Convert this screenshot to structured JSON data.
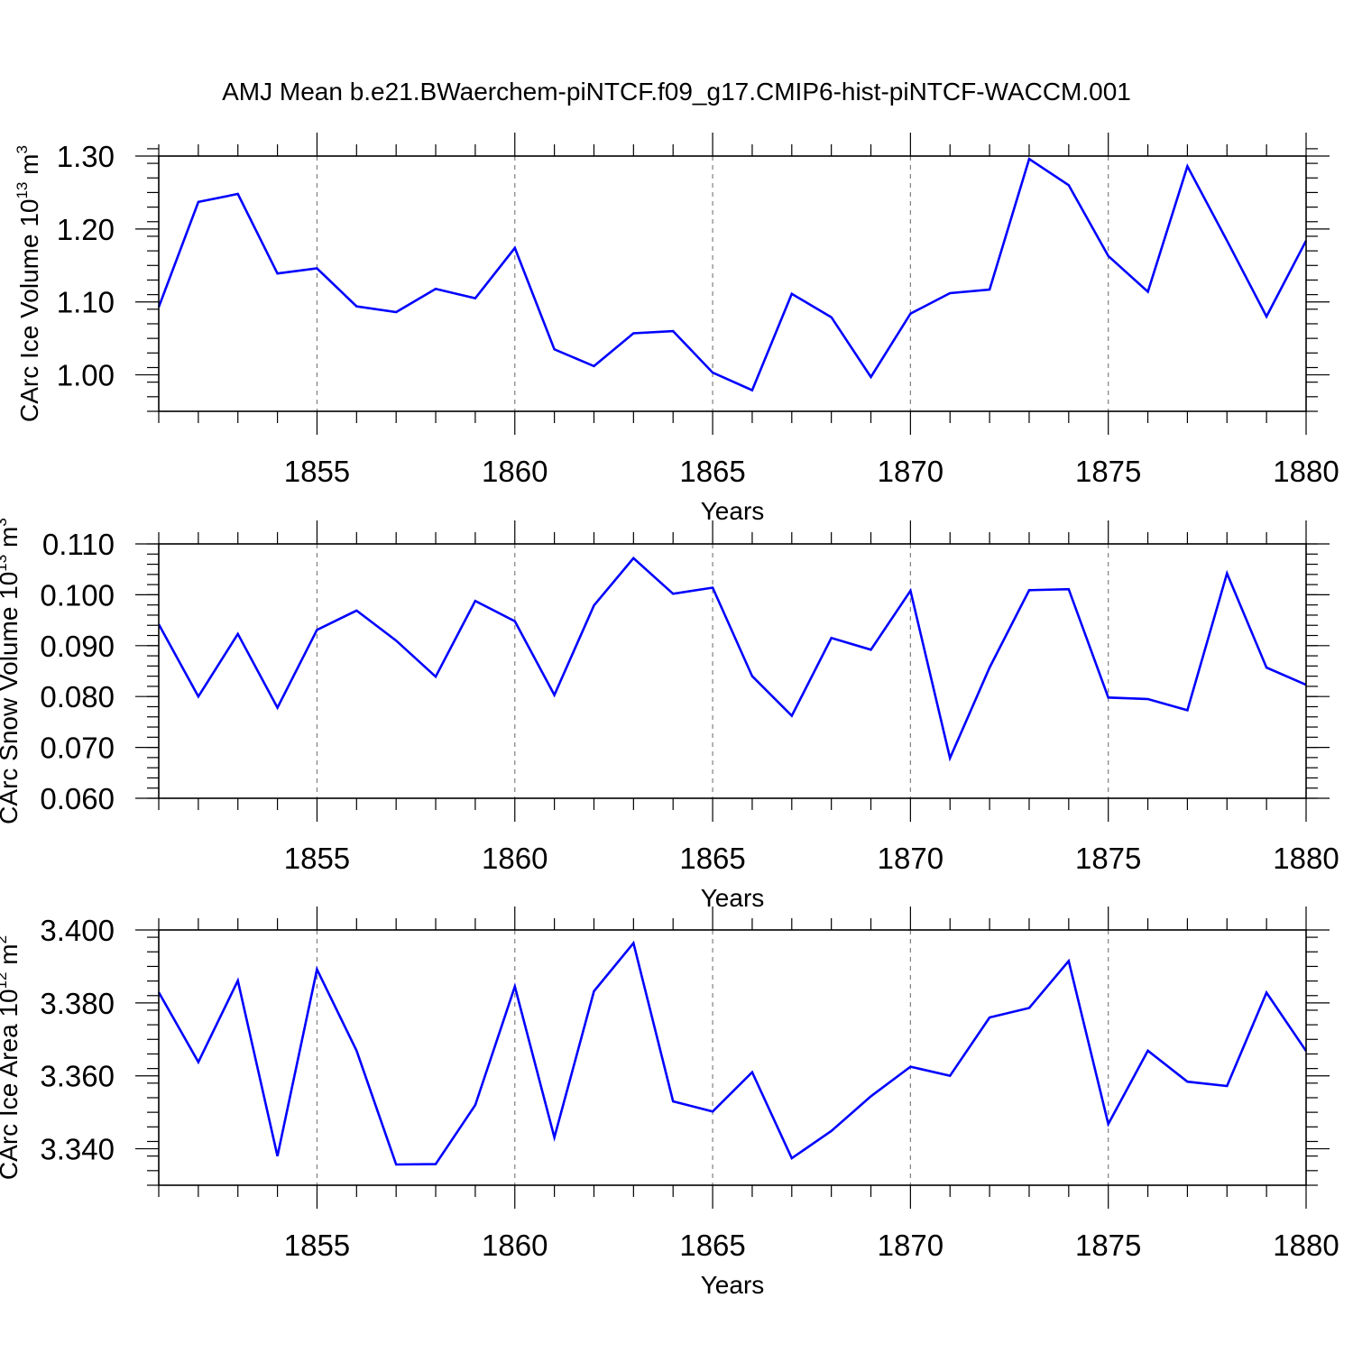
{
  "title": "AMJ Mean b.e21.BWaerchem-piNTCF.f09_g17.CMIP6-hist-piNTCF-WACCM.001",
  "line_color": "#0000ff",
  "chart_data": [
    {
      "type": "line",
      "ylabel": "CArc Ice Volume 10",
      "ylabel_exp": "13",
      "ylabel_unit": " m",
      "ylabel_unit_exp": "3",
      "xlabel": "Years",
      "xlim": [
        1851,
        1880
      ],
      "ylim": [
        0.95,
        1.3
      ],
      "yticks": [
        1.0,
        1.1,
        1.2,
        1.3
      ],
      "ytick_labels": [
        "1.00",
        "1.10",
        "1.20",
        "1.30"
      ],
      "yminor_step": 0.02,
      "xticks": [
        1855,
        1860,
        1865,
        1870,
        1875,
        1880
      ],
      "xtick_labels": [
        "1855",
        "1860",
        "1865",
        "1870",
        "1875",
        "1880"
      ],
      "x": [
        1851,
        1852,
        1853,
        1854,
        1855,
        1856,
        1857,
        1858,
        1859,
        1860,
        1861,
        1862,
        1863,
        1864,
        1865,
        1866,
        1867,
        1868,
        1869,
        1870,
        1871,
        1872,
        1873,
        1874,
        1875,
        1876,
        1877,
        1878,
        1879,
        1880
      ],
      "values": [
        1.093,
        1.237,
        1.248,
        1.139,
        1.146,
        1.094,
        1.086,
        1.118,
        1.105,
        1.174,
        1.035,
        1.012,
        1.057,
        1.06,
        1.003,
        0.979,
        1.111,
        1.079,
        0.997,
        1.084,
        1.112,
        1.117,
        1.296,
        1.26,
        1.163,
        1.114,
        1.286,
        1.184,
        1.08,
        1.184
      ]
    },
    {
      "type": "line",
      "ylabel": "CArc Snow Volume 10",
      "ylabel_exp": "13",
      "ylabel_unit": " m",
      "ylabel_unit_exp": "3",
      "xlabel": "Years",
      "xlim": [
        1851,
        1880
      ],
      "ylim": [
        0.06,
        0.11
      ],
      "yticks": [
        0.06,
        0.07,
        0.08,
        0.09,
        0.1,
        0.11
      ],
      "ytick_labels": [
        "0.060",
        "0.070",
        "0.080",
        "0.090",
        "0.100",
        "0.110"
      ],
      "yminor_step": 0.002,
      "xticks": [
        1855,
        1860,
        1865,
        1870,
        1875,
        1880
      ],
      "xtick_labels": [
        "1855",
        "1860",
        "1865",
        "1870",
        "1875",
        "1880"
      ],
      "x": [
        1851,
        1852,
        1853,
        1854,
        1855,
        1856,
        1857,
        1858,
        1859,
        1860,
        1861,
        1862,
        1863,
        1864,
        1865,
        1866,
        1867,
        1868,
        1869,
        1870,
        1871,
        1872,
        1873,
        1874,
        1875,
        1876,
        1877,
        1878,
        1879,
        1880
      ],
      "values": [
        0.0942,
        0.08,
        0.0923,
        0.0778,
        0.0931,
        0.0969,
        0.091,
        0.0839,
        0.0988,
        0.0948,
        0.0803,
        0.0979,
        0.1072,
        0.1002,
        0.1014,
        0.084,
        0.0762,
        0.0915,
        0.0892,
        0.1008,
        0.0679,
        0.0857,
        0.1009,
        0.1011,
        0.0798,
        0.0795,
        0.0773,
        0.1042,
        0.0857,
        0.0823
      ]
    },
    {
      "type": "line",
      "ylabel": "CArc Ice Area 10",
      "ylabel_exp": "12",
      "ylabel_unit": " m",
      "ylabel_unit_exp": "2",
      "xlabel": "Years",
      "xlim": [
        1851,
        1880
      ],
      "ylim": [
        3.33,
        3.4
      ],
      "yticks": [
        3.34,
        3.36,
        3.38,
        3.4
      ],
      "ytick_labels": [
        "3.340",
        "3.360",
        "3.380",
        "3.400"
      ],
      "yminor_step": 0.004,
      "xticks": [
        1855,
        1860,
        1865,
        1870,
        1875,
        1880
      ],
      "xtick_labels": [
        "1855",
        "1860",
        "1865",
        "1870",
        "1875",
        "1880"
      ],
      "x": [
        1851,
        1852,
        1853,
        1854,
        1855,
        1856,
        1857,
        1858,
        1859,
        1860,
        1861,
        1862,
        1863,
        1864,
        1865,
        1866,
        1867,
        1868,
        1869,
        1870,
        1871,
        1872,
        1873,
        1874,
        1875,
        1876,
        1877,
        1878,
        1879,
        1880
      ],
      "values": [
        3.3829,
        3.3638,
        3.3861,
        3.338,
        3.3892,
        3.3669,
        3.3357,
        3.3358,
        3.352,
        3.3845,
        3.3431,
        3.3832,
        3.3964,
        3.353,
        3.3502,
        3.361,
        3.3374,
        3.3449,
        3.3544,
        3.3625,
        3.36,
        3.376,
        3.3786,
        3.3915,
        3.3468,
        3.3669,
        3.3584,
        3.3572,
        3.3828,
        3.3668
      ]
    }
  ]
}
